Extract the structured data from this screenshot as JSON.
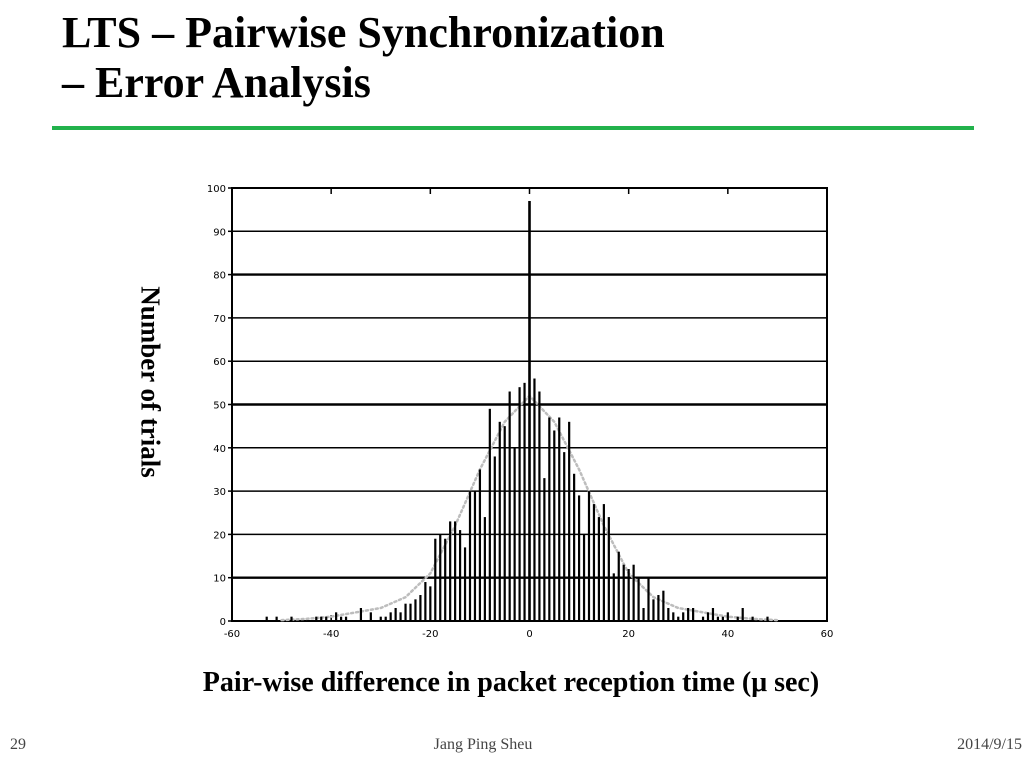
{
  "slide": {
    "title_line1": "LTS – Pairwise Synchronization",
    "title_line2": "– Error Analysis",
    "y_axis_label": "Number of trials",
    "x_axis_label": "Pair-wise difference in packet reception time (μ sec)",
    "page_number": "29",
    "author": "Jang Ping Sheu",
    "date": "2014/9/15",
    "accent_color": "#22b24c"
  },
  "chart_data": {
    "type": "bar",
    "title": "",
    "xlabel": "",
    "ylabel": "",
    "xlim": [
      -60,
      60
    ],
    "ylim": [
      0,
      100
    ],
    "x_ticks": [
      -60,
      -40,
      -20,
      0,
      20,
      40,
      60
    ],
    "y_ticks": [
      0,
      10,
      20,
      30,
      40,
      50,
      60,
      70,
      80,
      90,
      100
    ],
    "grid": true,
    "series": [
      {
        "points": [
          [
            -53,
            1
          ],
          [
            -51,
            1
          ],
          [
            -48,
            1
          ],
          [
            -43,
            1
          ],
          [
            -42,
            1
          ],
          [
            -41,
            1
          ],
          [
            -39,
            2
          ],
          [
            -38,
            1
          ],
          [
            -37,
            1
          ],
          [
            -34,
            3
          ],
          [
            -32,
            2
          ],
          [
            -30,
            1
          ],
          [
            -29,
            1
          ],
          [
            -28,
            2
          ],
          [
            -27,
            3
          ],
          [
            -26,
            2
          ],
          [
            -25,
            4
          ],
          [
            -24,
            4
          ],
          [
            -23,
            5
          ],
          [
            -22,
            6
          ],
          [
            -21,
            9
          ],
          [
            -20,
            8
          ],
          [
            -19,
            19
          ],
          [
            -18,
            20
          ],
          [
            -17,
            19
          ],
          [
            -16,
            23
          ],
          [
            -15,
            23
          ],
          [
            -14,
            21
          ],
          [
            -13,
            17
          ],
          [
            -12,
            30
          ],
          [
            -11,
            30
          ],
          [
            -10,
            35
          ],
          [
            -9,
            24
          ],
          [
            -8,
            49
          ],
          [
            -7,
            38
          ],
          [
            -6,
            46
          ],
          [
            -5,
            45
          ],
          [
            -4,
            53
          ],
          [
            -3,
            40
          ],
          [
            -2,
            54
          ],
          [
            -1,
            55
          ],
          [
            0,
            97
          ],
          [
            1,
            56
          ],
          [
            2,
            53
          ],
          [
            3,
            33
          ],
          [
            4,
            47
          ],
          [
            5,
            44
          ],
          [
            6,
            47
          ],
          [
            7,
            39
          ],
          [
            8,
            46
          ],
          [
            9,
            34
          ],
          [
            10,
            29
          ],
          [
            11,
            20
          ],
          [
            12,
            30
          ],
          [
            13,
            27
          ],
          [
            14,
            24
          ],
          [
            15,
            27
          ],
          [
            16,
            24
          ],
          [
            17,
            11
          ],
          [
            18,
            16
          ],
          [
            19,
            13
          ],
          [
            20,
            12
          ],
          [
            21,
            13
          ],
          [
            22,
            10
          ],
          [
            23,
            3
          ],
          [
            24,
            10
          ],
          [
            25,
            5
          ],
          [
            26,
            6
          ],
          [
            27,
            7
          ],
          [
            28,
            3
          ],
          [
            29,
            2
          ],
          [
            30,
            1
          ],
          [
            31,
            2
          ],
          [
            32,
            3
          ],
          [
            33,
            3
          ],
          [
            35,
            1
          ],
          [
            36,
            2
          ],
          [
            37,
            3
          ],
          [
            38,
            1
          ],
          [
            39,
            1
          ],
          [
            40,
            2
          ],
          [
            42,
            1
          ],
          [
            43,
            3
          ],
          [
            45,
            1
          ],
          [
            48,
            1
          ]
        ]
      },
      {
        "style": "dotted-curve",
        "x": [
          -50,
          -45,
          -40,
          -35,
          -30,
          -25,
          -20,
          -15,
          -10,
          -5,
          0,
          5,
          10,
          15,
          20,
          25,
          30,
          35,
          40,
          45,
          50
        ],
        "values": [
          0.2,
          0.5,
          1,
          2,
          3,
          5.5,
          11,
          22,
          35,
          46,
          52,
          46,
          35,
          22,
          11,
          5.5,
          3,
          2,
          1,
          0.5,
          0.2
        ]
      }
    ]
  }
}
